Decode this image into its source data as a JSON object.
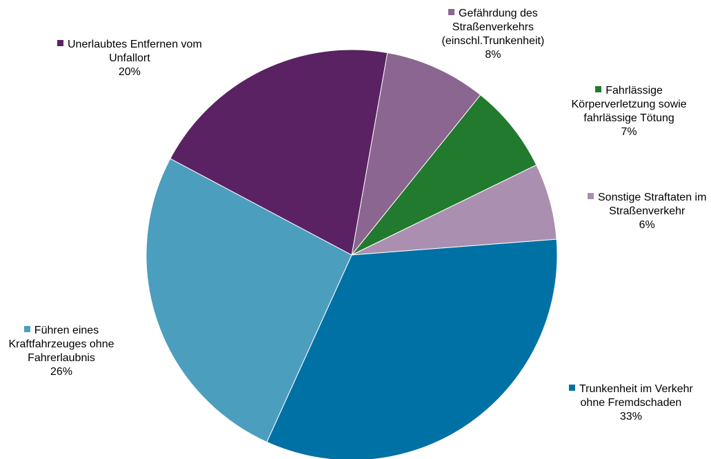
{
  "chart_data": {
    "type": "pie",
    "slices": [
      {
        "name": "Gefährdung des Straßenverkehrs (einschl.Trunkenheit)",
        "lines": [
          "Gefährdung des",
          "Straßenverkehrs",
          "(einschl.Trunkenheit)"
        ],
        "value": 8,
        "value_label": "8%",
        "color": "#8B6690"
      },
      {
        "name": "Fahrlässige Körperverletzung sowie fahrlässige Tötung",
        "lines": [
          "Fahrlässige",
          "Körperverletzung sowie",
          "fahrlässige Tötung"
        ],
        "value": 7,
        "value_label": "7%",
        "color": "#217A2E"
      },
      {
        "name": "Sonstige Straftaten im Straßenverkehr",
        "lines": [
          "Sonstige Straftaten im",
          "Straßenverkehr"
        ],
        "value": 6,
        "value_label": "6%",
        "color": "#AB8FB1"
      },
      {
        "name": "Trunkenheit im Verkehr ohne Fremdschaden",
        "lines": [
          "Trunkenheit im Verkehr",
          "ohne Fremdschaden"
        ],
        "value": 33,
        "value_label": "33%",
        "color": "#0071A4"
      },
      {
        "name": "Führen eines Kraftfahrzeuges ohne Fahrerlaubnis",
        "lines": [
          "Führen eines",
          "Kraftfahrzeuges ohne",
          "Fahrerlaubnis"
        ],
        "value": 26,
        "value_label": "26%",
        "color": "#4C9EBF"
      },
      {
        "name": "Unerlaubtes Entfernen vom Unfallort",
        "lines": [
          "Unerlaubtes Entfernen vom",
          "Unfallort"
        ],
        "value": 20,
        "value_label": "20%",
        "color": "#5A2263"
      }
    ]
  }
}
